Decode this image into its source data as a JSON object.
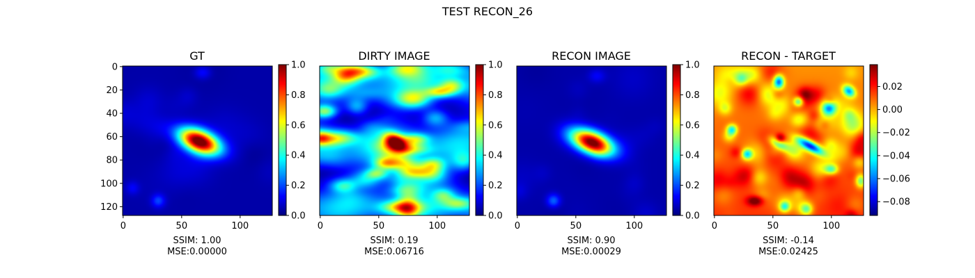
{
  "figure": {
    "suptitle": "TEST RECON_26"
  },
  "chart_data": [
    {
      "type": "heatmap",
      "title": "GT",
      "xlabel_lines": [
        "SSIM: 1.00",
        "MSE:0.00000"
      ],
      "xticks": [
        0,
        50,
        100
      ],
      "yticks": [
        0,
        20,
        40,
        60,
        80,
        100,
        120
      ],
      "image_size": 128,
      "colormap": "jet",
      "colorbar_range": [
        0.0,
        1.0
      ],
      "colorbar_ticks": [
        "0.0",
        "0.2",
        "0.4",
        "0.6",
        "0.8",
        "1.0"
      ],
      "features": [
        {
          "x": 65,
          "y": 64,
          "sx": 13,
          "sy": 6.5,
          "angle": -22,
          "amp": 1.0
        },
        {
          "x": 30,
          "y": 115,
          "sx": 4,
          "sy": 4,
          "angle": 0,
          "amp": 0.15
        },
        {
          "x": 68,
          "y": 5,
          "sx": 5,
          "sy": 4,
          "angle": 0,
          "amp": 0.1
        },
        {
          "x": 8,
          "y": 104,
          "sx": 4,
          "sy": 4,
          "angle": 0,
          "amp": 0.08
        }
      ]
    },
    {
      "type": "heatmap",
      "title": "DIRTY IMAGE",
      "xlabel_lines": [
        "SSIM: 0.19",
        "MSE:0.06716"
      ],
      "xticks": [
        0,
        50,
        100
      ],
      "image_size": 128,
      "colormap": "jet",
      "colorbar_range": [
        0.0,
        1.0
      ],
      "colorbar_ticks": [
        "0.0",
        "0.2",
        "0.4",
        "0.6",
        "0.8",
        "1.0"
      ],
      "features": [
        {
          "x": 64,
          "y": 64,
          "sx": 7,
          "sy": 4.5,
          "angle": -30,
          "amp": 0.6
        }
      ]
    },
    {
      "type": "heatmap",
      "title": "RECON IMAGE",
      "xlabel_lines": [
        "SSIM: 0.90",
        "MSE:0.00029"
      ],
      "xticks": [
        0,
        50,
        100
      ],
      "image_size": 128,
      "colormap": "jet",
      "colorbar_range": [
        0.0,
        1.0
      ],
      "colorbar_ticks": [
        "0.0",
        "0.2",
        "0.4",
        "0.6",
        "0.8",
        "1.0"
      ],
      "features": [
        {
          "x": 64,
          "y": 65,
          "sx": 13,
          "sy": 6.5,
          "angle": -22,
          "amp": 1.0
        },
        {
          "x": 31,
          "y": 115,
          "sx": 4,
          "sy": 4,
          "angle": 0,
          "amp": 0.18
        },
        {
          "x": 68,
          "y": 8,
          "sx": 5,
          "sy": 4,
          "angle": 0,
          "amp": 0.08
        }
      ]
    },
    {
      "type": "heatmap",
      "title": "RECON - TARGET",
      "xlabel_lines": [
        "SSIM: -0.14",
        "MSE:0.02425"
      ],
      "xticks": [
        0,
        50,
        100
      ],
      "image_size": 128,
      "colormap": "jet",
      "colorbar_range": [
        -0.092,
        0.039
      ],
      "colorbar_ticks": [
        "0.02",
        "0.00",
        "−0.02",
        "−0.04",
        "−0.06",
        "−0.08"
      ],
      "colorbar_tick_values": [
        0.02,
        0.0,
        -0.02,
        -0.04,
        -0.06,
        -0.08
      ],
      "features": [
        {
          "x": 82,
          "y": 68,
          "sx": 9,
          "sy": 3,
          "angle": -30,
          "amp": -0.085
        },
        {
          "x": 55,
          "y": 66,
          "sx": 6,
          "sy": 3,
          "angle": -30,
          "amp": -0.05
        },
        {
          "x": 56,
          "y": 62,
          "sx": 3,
          "sy": 3,
          "angle": 0,
          "amp": 0.035
        },
        {
          "x": 35,
          "y": 115,
          "sx": 5,
          "sy": 3,
          "angle": 0,
          "amp": 0.035
        },
        {
          "x": 55,
          "y": 13,
          "sx": 3,
          "sy": 4,
          "angle": 0,
          "amp": -0.07
        },
        {
          "x": 115,
          "y": 21,
          "sx": 4,
          "sy": 3,
          "angle": -40,
          "amp": -0.06
        },
        {
          "x": 72,
          "y": 30,
          "sx": 3,
          "sy": 3,
          "angle": 0,
          "amp": -0.05
        },
        {
          "x": 98,
          "y": 36,
          "sx": 4,
          "sy": 4,
          "angle": 0,
          "amp": -0.045
        },
        {
          "x": 15,
          "y": 54,
          "sx": 3,
          "sy": 3,
          "angle": 0,
          "amp": -0.05
        },
        {
          "x": 28,
          "y": 75,
          "sx": 3,
          "sy": 3,
          "angle": 0,
          "amp": -0.05
        },
        {
          "x": 100,
          "y": 88,
          "sx": 4,
          "sy": 3,
          "angle": 0,
          "amp": -0.04
        },
        {
          "x": 60,
          "y": 120,
          "sx": 3,
          "sy": 3,
          "angle": 0,
          "amp": -0.04
        },
        {
          "x": 125,
          "y": 98,
          "sx": 3,
          "sy": 4,
          "angle": 0,
          "amp": -0.04
        }
      ]
    }
  ]
}
